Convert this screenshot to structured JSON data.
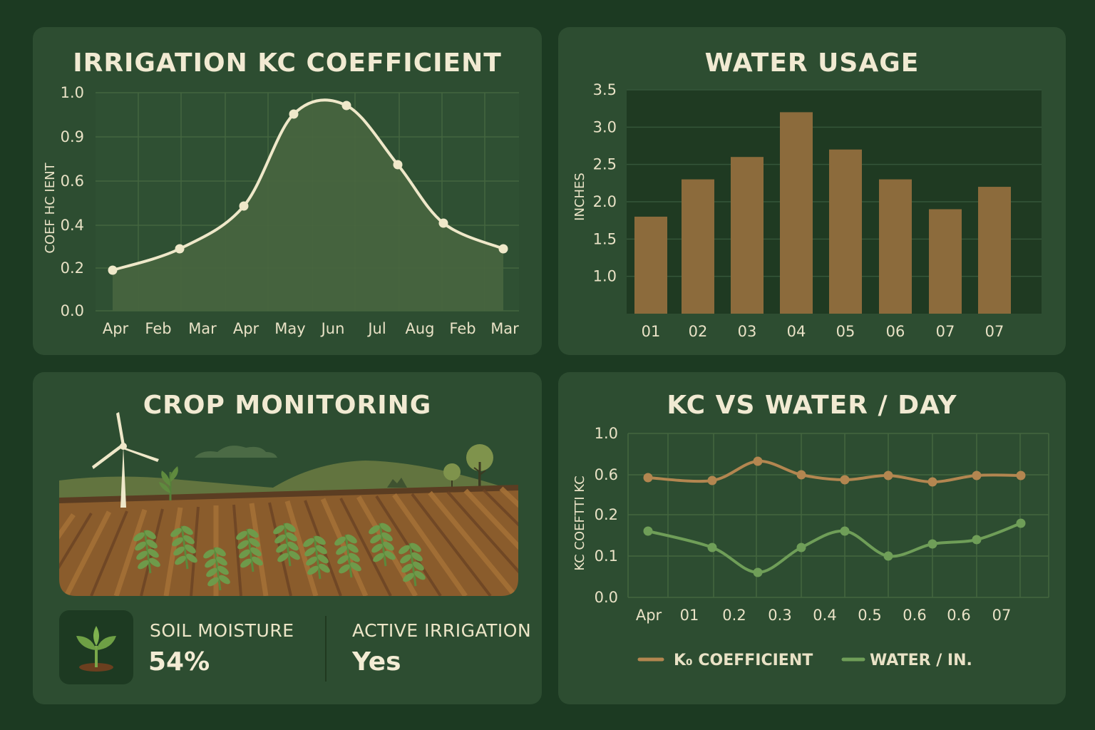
{
  "colors": {
    "background": "#1c3a22",
    "panel": "#2d4d31",
    "cream": "#efe8c9",
    "bar": "#8c6b3c",
    "kc_line": "#b38650",
    "water_line": "#6f9e58",
    "fill_green": "#48653f"
  },
  "kc_panel": {
    "title": "IRRIGATION KC COEFFICIENT",
    "ylabel": "COEF HC IENT"
  },
  "water_panel": {
    "title": "WATER USAGE",
    "ylabel": "INCHES"
  },
  "crop_panel": {
    "title": "CROP MONITORING",
    "illustration": "farm-field-windmill",
    "soil_label": "SOIL MOISTURE",
    "soil_value": "54%",
    "irrigation_label": "ACTIVE IRRIGATION",
    "irrigation_value": "Yes",
    "icon": "seedling-icon"
  },
  "combo_panel": {
    "title": "KC VS WATER / DAY",
    "ylabel": "KC COEFTTI KC"
  },
  "chart_data": [
    {
      "type": "area",
      "title": "IRRIGATION KC COEFFICIENT",
      "ylabel": "COEF HC IENT",
      "x": [
        "Apr",
        "Feb",
        "Mar",
        "Apr",
        "May",
        "Jun",
        "Jul",
        "Aug",
        "Feb",
        "Mar"
      ],
      "y_ticks": [
        "0.0",
        "0.2",
        "0.4",
        "0.6",
        "0.9",
        "1.0"
      ],
      "points": [
        {
          "x": "Apr",
          "y": 0.19
        },
        {
          "x": "Mar",
          "y": 0.29
        },
        {
          "x": "Apr",
          "y": 0.49
        },
        {
          "x": "May",
          "y": 0.91
        },
        {
          "x": "Jun",
          "y": 0.95
        },
        {
          "x": "Jul",
          "y": 0.68
        },
        {
          "x": "Feb",
          "y": 0.41
        },
        {
          "x": "Mar",
          "y": 0.29
        }
      ],
      "grid": true
    },
    {
      "type": "bar",
      "title": "WATER USAGE",
      "ylabel": "INCHES",
      "categories": [
        "01",
        "02",
        "03",
        "04",
        "05",
        "06",
        "07",
        "07"
      ],
      "values": [
        1.8,
        2.3,
        2.6,
        3.2,
        2.7,
        2.3,
        1.9,
        2.2
      ],
      "y_ticks": [
        "1.0",
        "1.5",
        "2.0",
        "2.5",
        "3.0",
        "3.5"
      ],
      "ylim": [
        0.5,
        3.5
      ],
      "grid": true
    },
    {
      "type": "line",
      "title": "KC VS WATER / DAY",
      "ylabel": "KC COEFTTI KC",
      "x_ticks": [
        "Apr",
        "01",
        "0.2",
        "0.3",
        "0.4",
        "0.5",
        "0.6",
        "0.6",
        "07"
      ],
      "y_ticks": [
        "0.0",
        "0.1",
        "0.2",
        "0.6",
        "1.0"
      ],
      "series": [
        {
          "name": "K₀ COEFFICIENT",
          "values": [
            0.57,
            0.54,
            0.73,
            0.6,
            0.55,
            0.59,
            0.53,
            0.59,
            0.59
          ]
        },
        {
          "name": "WATER / IN.",
          "values": [
            0.16,
            0.12,
            0.06,
            0.12,
            0.16,
            0.1,
            0.13,
            0.14,
            0.18
          ]
        }
      ],
      "legend": "bottom",
      "grid": true
    }
  ]
}
